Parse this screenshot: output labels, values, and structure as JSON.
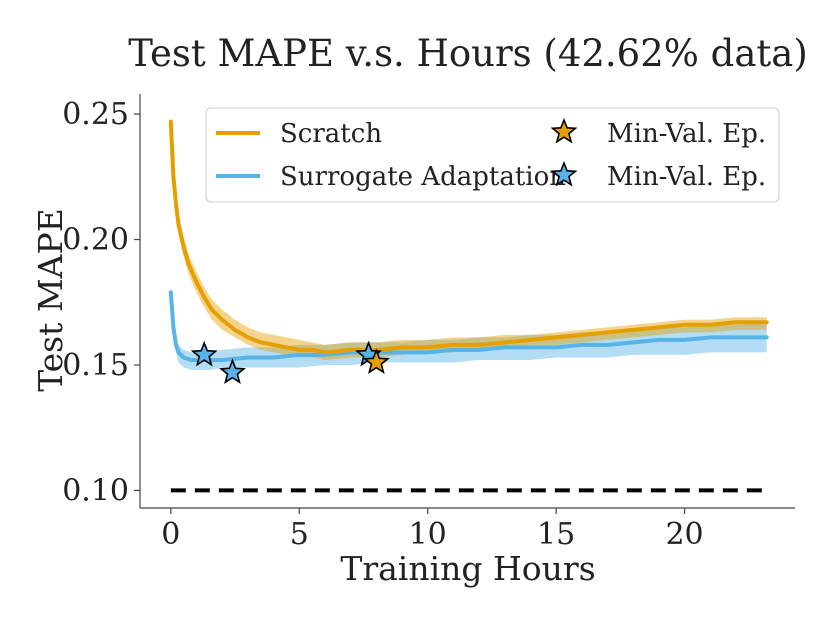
{
  "chart_data": {
    "type": "line",
    "title": "Test MAPE v.s. Hours (42.62% data)",
    "xlabel": "Training Hours",
    "ylabel": "Test MAPE",
    "xlim": [
      -1.2,
      24.3
    ],
    "ylim": [
      0.093,
      0.258
    ],
    "xticks": [
      {
        "value": 0,
        "label": "0"
      },
      {
        "value": 5,
        "label": "5"
      },
      {
        "value": 10,
        "label": "10"
      },
      {
        "value": 15,
        "label": "15"
      },
      {
        "value": 20,
        "label": "20"
      }
    ],
    "yticks": [
      {
        "value": 0.1,
        "label": "0.10"
      },
      {
        "value": 0.15,
        "label": "0.15"
      },
      {
        "value": 0.2,
        "label": "0.20"
      },
      {
        "value": 0.25,
        "label": "0.25"
      }
    ],
    "grid": false,
    "legend_position": "top-right",
    "legend": [
      {
        "label": "Scratch",
        "kind": "line",
        "color": "#E69F00"
      },
      {
        "label": "Min-Val. Ep.",
        "kind": "star",
        "color": "#E69F00"
      },
      {
        "label": "Surrogate Adaptation",
        "kind": "line",
        "color": "#56B4E9"
      },
      {
        "label": "Min-Val. Ep.",
        "kind": "star",
        "color": "#56B4E9"
      }
    ],
    "series": [
      {
        "name": "Scratch",
        "color": "#E69F00",
        "x": [
          0,
          0.1,
          0.2,
          0.3,
          0.5,
          0.7,
          1.0,
          1.3,
          1.6,
          2.0,
          2.5,
          3.0,
          3.5,
          4.0,
          4.5,
          5.0,
          5.5,
          6.0,
          7.0,
          8.0,
          9.0,
          10.0,
          11.0,
          12.0,
          13.0,
          14.0,
          15.0,
          16.0,
          17.0,
          18.0,
          19.0,
          20.0,
          21.0,
          22.0,
          23.2
        ],
        "mean": [
          0.247,
          0.225,
          0.214,
          0.206,
          0.197,
          0.19,
          0.183,
          0.177,
          0.172,
          0.168,
          0.164,
          0.161,
          0.159,
          0.158,
          0.157,
          0.156,
          0.156,
          0.155,
          0.156,
          0.156,
          0.157,
          0.157,
          0.158,
          0.158,
          0.159,
          0.16,
          0.161,
          0.162,
          0.163,
          0.164,
          0.165,
          0.166,
          0.166,
          0.167,
          0.167
        ],
        "lower": [
          0.244,
          0.221,
          0.21,
          0.202,
          0.193,
          0.186,
          0.179,
          0.173,
          0.168,
          0.164,
          0.161,
          0.158,
          0.156,
          0.155,
          0.154,
          0.153,
          0.153,
          0.152,
          0.153,
          0.153,
          0.154,
          0.155,
          0.155,
          0.156,
          0.157,
          0.158,
          0.158,
          0.159,
          0.16,
          0.161,
          0.162,
          0.163,
          0.163,
          0.164,
          0.164
        ],
        "upper": [
          0.25,
          0.229,
          0.218,
          0.21,
          0.201,
          0.194,
          0.187,
          0.181,
          0.176,
          0.172,
          0.168,
          0.165,
          0.163,
          0.162,
          0.161,
          0.16,
          0.159,
          0.158,
          0.159,
          0.159,
          0.16,
          0.16,
          0.161,
          0.161,
          0.162,
          0.162,
          0.163,
          0.164,
          0.165,
          0.166,
          0.167,
          0.168,
          0.168,
          0.169,
          0.169
        ]
      },
      {
        "name": "Surrogate Adaptation",
        "color": "#56B4E9",
        "x": [
          0,
          0.05,
          0.1,
          0.2,
          0.3,
          0.5,
          0.8,
          1.0,
          1.5,
          2.0,
          3.0,
          4.0,
          5.0,
          6.0,
          7.0,
          8.0,
          9.0,
          10.0,
          11.0,
          12.0,
          13.0,
          14.0,
          15.0,
          16.0,
          17.0,
          18.0,
          19.0,
          20.0,
          21.0,
          22.0,
          23.2
        ],
        "mean": [
          0.179,
          0.172,
          0.165,
          0.158,
          0.155,
          0.153,
          0.152,
          0.152,
          0.152,
          0.152,
          0.153,
          0.153,
          0.154,
          0.154,
          0.155,
          0.155,
          0.155,
          0.155,
          0.156,
          0.156,
          0.157,
          0.157,
          0.157,
          0.158,
          0.158,
          0.159,
          0.16,
          0.16,
          0.161,
          0.161,
          0.161
        ],
        "lower": [
          0.177,
          0.17,
          0.162,
          0.155,
          0.151,
          0.149,
          0.148,
          0.148,
          0.148,
          0.149,
          0.149,
          0.149,
          0.149,
          0.15,
          0.15,
          0.151,
          0.151,
          0.151,
          0.151,
          0.152,
          0.152,
          0.152,
          0.153,
          0.153,
          0.153,
          0.154,
          0.154,
          0.154,
          0.155,
          0.155,
          0.155
        ],
        "upper": [
          0.181,
          0.174,
          0.168,
          0.161,
          0.158,
          0.156,
          0.155,
          0.155,
          0.155,
          0.156,
          0.157,
          0.157,
          0.158,
          0.158,
          0.159,
          0.159,
          0.159,
          0.16,
          0.16,
          0.161,
          0.161,
          0.162,
          0.162,
          0.163,
          0.163,
          0.164,
          0.165,
          0.165,
          0.166,
          0.166,
          0.167
        ]
      }
    ],
    "markers": [
      {
        "series": "Surrogate Adaptation",
        "label": "Min-Val. Ep.",
        "x": 1.3,
        "y": 0.154,
        "color": "#56B4E9"
      },
      {
        "series": "Surrogate Adaptation",
        "label": "Min-Val. Ep.",
        "x": 2.4,
        "y": 0.147,
        "color": "#56B4E9"
      },
      {
        "series": "Surrogate Adaptation",
        "label": "Min-Val. Ep.",
        "x": 7.7,
        "y": 0.154,
        "color": "#56B4E9"
      },
      {
        "series": "Scratch",
        "label": "Min-Val. Ep.",
        "x": 8.0,
        "y": 0.151,
        "color": "#E69F00"
      }
    ],
    "reference_line": {
      "name": "target",
      "y": 0.1,
      "x_start": 0,
      "x_end": 23.2,
      "style": "dashed",
      "color": "#000000"
    }
  }
}
